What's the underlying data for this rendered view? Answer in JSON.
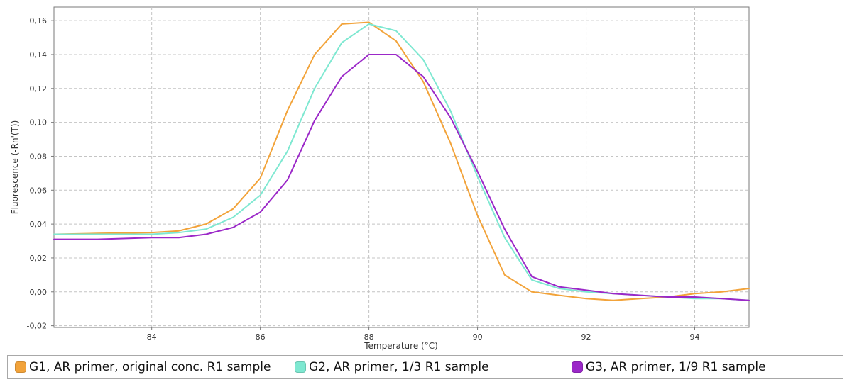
{
  "chart_data": {
    "type": "line",
    "title": "",
    "xlabel": "Temperature (°C)",
    "ylabel": "Fluorescence (-Rn'(T))",
    "xlim": [
      82.2,
      95.0
    ],
    "ylim": [
      -0.021,
      0.168
    ],
    "x_ticks": [
      84,
      86,
      88,
      90,
      92,
      94
    ],
    "x_tick_labels": [
      "84",
      "86",
      "88",
      "90",
      "92",
      "94"
    ],
    "y_ticks": [
      -0.02,
      0.0,
      0.02,
      0.04,
      0.06,
      0.08,
      0.1,
      0.12,
      0.14,
      0.16
    ],
    "y_tick_labels": [
      "-0,02",
      "0,00",
      "0,02",
      "0,04",
      "0,06",
      "0,08",
      "0,10",
      "0,12",
      "0,14",
      "0,16"
    ],
    "grid": true,
    "legend_position": "bottom",
    "series": [
      {
        "name": "G1, AR primer, original conc. R1 sample",
        "color": "#f2a33a",
        "x": [
          82.2,
          83.0,
          84.0,
          84.5,
          85.0,
          85.5,
          86.0,
          86.5,
          87.0,
          87.5,
          88.0,
          88.5,
          89.0,
          89.5,
          90.0,
          90.5,
          91.0,
          91.5,
          92.0,
          92.5,
          93.0,
          93.5,
          94.0,
          94.5,
          95.0
        ],
        "values": [
          0.034,
          0.0345,
          0.035,
          0.036,
          0.04,
          0.049,
          0.067,
          0.107,
          0.14,
          0.158,
          0.159,
          0.148,
          0.124,
          0.088,
          0.045,
          0.01,
          0.0,
          -0.002,
          -0.004,
          -0.005,
          -0.004,
          -0.003,
          -0.001,
          0.0,
          0.002
        ]
      },
      {
        "name": "G2, AR primer, 1/3 R1 sample",
        "color": "#7ee8d1",
        "x": [
          82.2,
          83.0,
          84.0,
          84.5,
          85.0,
          85.5,
          86.0,
          86.5,
          87.0,
          87.5,
          88.0,
          88.5,
          89.0,
          89.5,
          90.0,
          90.5,
          91.0,
          91.5,
          92.0,
          92.5,
          93.0,
          93.5,
          94.0,
          94.5,
          95.0
        ],
        "values": [
          0.034,
          0.034,
          0.034,
          0.035,
          0.037,
          0.044,
          0.057,
          0.083,
          0.12,
          0.147,
          0.158,
          0.154,
          0.137,
          0.107,
          0.068,
          0.032,
          0.007,
          0.002,
          0.0,
          -0.001,
          -0.002,
          -0.003,
          -0.004,
          -0.004,
          -0.005
        ]
      },
      {
        "name": "G3, AR primer, 1/9 R1 sample",
        "color": "#9b28c8",
        "x": [
          82.2,
          83.0,
          84.0,
          84.5,
          85.0,
          85.5,
          86.0,
          86.5,
          87.0,
          87.5,
          88.0,
          88.5,
          89.0,
          89.5,
          90.0,
          90.5,
          91.0,
          91.5,
          92.0,
          92.5,
          93.0,
          93.5,
          94.0,
          94.5,
          95.0
        ],
        "values": [
          0.031,
          0.031,
          0.032,
          0.032,
          0.034,
          0.038,
          0.047,
          0.066,
          0.101,
          0.127,
          0.14,
          0.14,
          0.127,
          0.103,
          0.071,
          0.037,
          0.009,
          0.003,
          0.001,
          -0.001,
          -0.002,
          -0.003,
          -0.003,
          -0.004,
          -0.005
        ]
      }
    ]
  }
}
